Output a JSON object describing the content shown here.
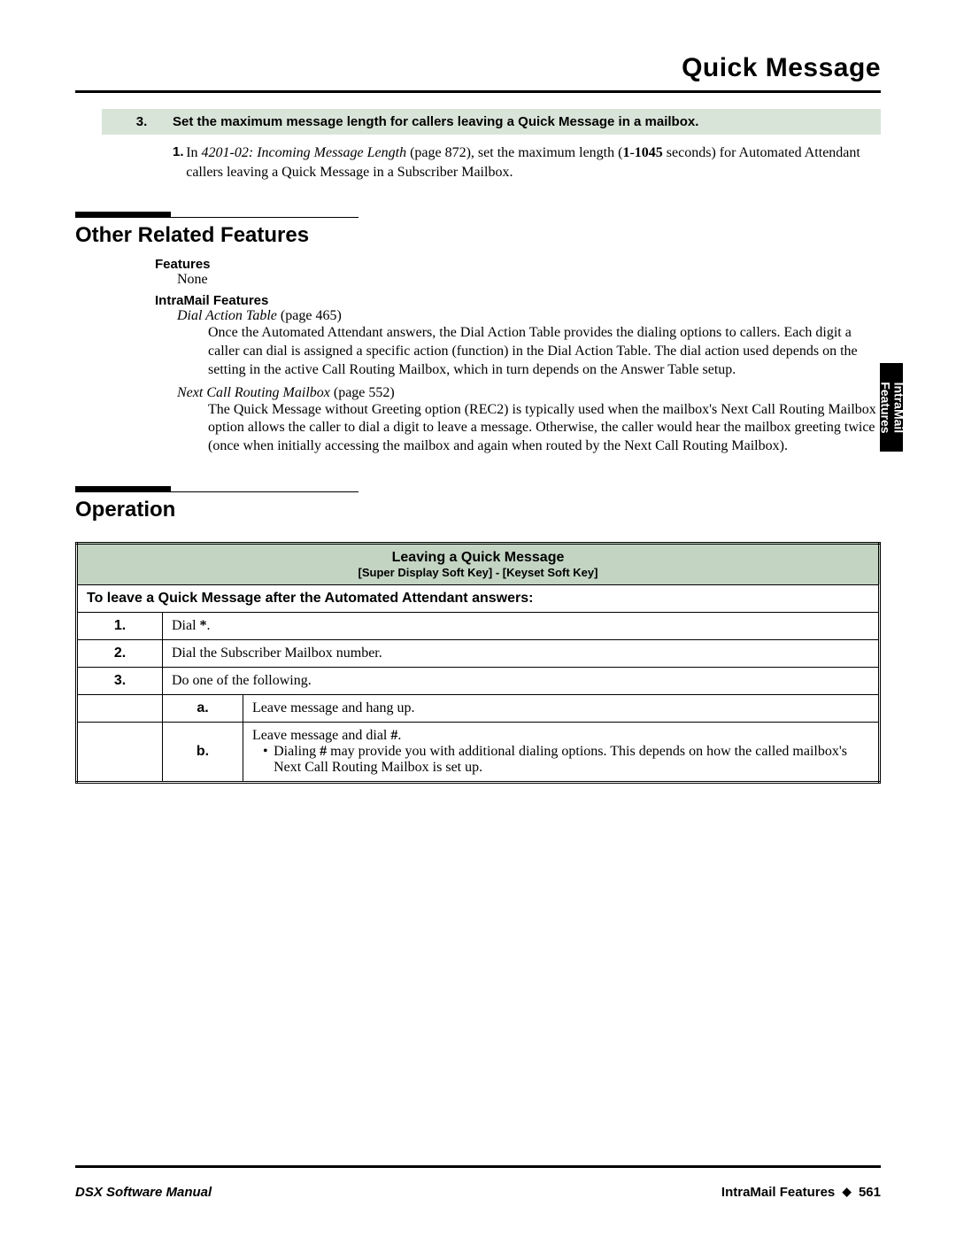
{
  "header": {
    "title": "Quick Message"
  },
  "step": {
    "number": "3.",
    "title": "Set the maximum message length for callers leaving a Quick Message in a mailbox.",
    "item_num": "1.",
    "item_pre": "In ",
    "item_ref": "4201-02: Incoming Message Length",
    "item_page": " (page 872), set the maximum length (",
    "item_bold1": "1",
    "item_dash": "-",
    "item_bold2": "1045",
    "item_post": " seconds) for Automated Attendant callers leaving a Quick Message in a Subscriber Mailbox."
  },
  "section_related": {
    "title": "Other Related Features",
    "features_label": "Features",
    "features_none": "None",
    "intramail_label": "IntraMail Features",
    "items": [
      {
        "ref": "Dial Action Table",
        "page": " (page 465)",
        "desc": "Once the Automated Attendant answers, the Dial Action Table provides the dialing options to callers. Each digit a caller can dial is assigned a specific action (function) in the Dial Action Table. The dial action used depends on the setting in the active Call Routing Mailbox, which in turn depends on the Answer Table setup."
      },
      {
        "ref": "Next Call Routing Mailbox",
        "page": " (page 552)",
        "desc": "The Quick Message without Greeting option (REC2) is typically used when the mailbox's Next Call Routing Mailbox option allows the caller to dial a digit to leave a message. Otherwise, the caller would hear the mailbox greeting twice (once when initially accessing the mailbox and again when routed by the Next Call Routing Mailbox)."
      }
    ]
  },
  "section_operation": {
    "title": "Operation"
  },
  "table": {
    "title": "Leaving a Quick Message",
    "subtitle": "[Super Display Soft Key] - [Keyset Soft Key]",
    "instruction": "To leave a Quick Message after the Automated Attendant answers:",
    "rows": [
      {
        "n": "1.",
        "pre": "Dial ",
        "bold": "*",
        "post": "."
      },
      {
        "n": "2.",
        "text": "Dial the Subscriber Mailbox number."
      },
      {
        "n": "3.",
        "text": "Do one of the following."
      }
    ],
    "subrows": [
      {
        "l": "a.",
        "text": "Leave message and hang up."
      },
      {
        "l": "b.",
        "line1_pre": "Leave message and dial ",
        "line1_bold": "#",
        "line1_post": ".",
        "bullet_pre": "Dialing ",
        "bullet_bold": "#",
        "bullet_post": " may provide you with additional dialing options. This depends on how the called mailbox's Next Call Routing Mailbox is set up."
      }
    ]
  },
  "side_tab": {
    "line1": "IntraMail",
    "line2": "Features"
  },
  "footer": {
    "left": "DSX Software Manual",
    "right_label": "IntraMail Features",
    "right_page": "561"
  }
}
